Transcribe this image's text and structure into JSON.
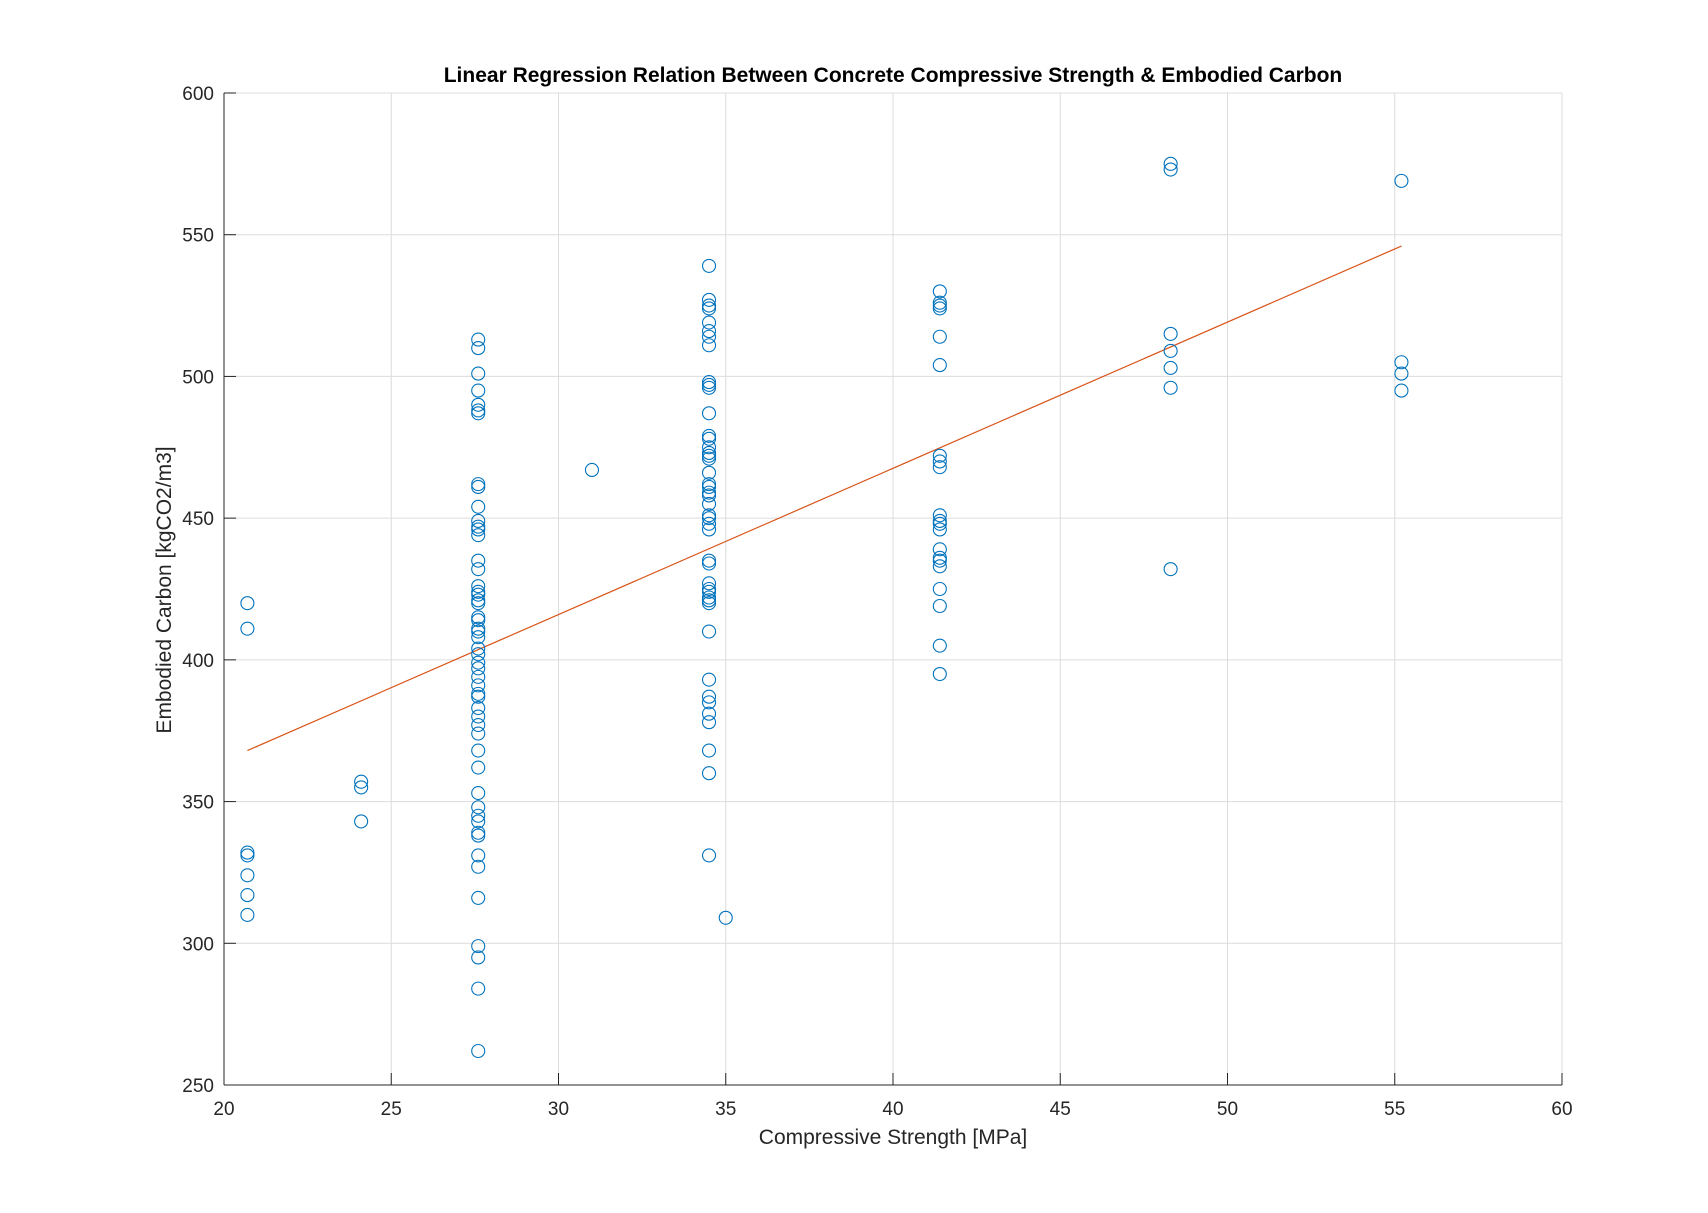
{
  "colors": {
    "points": "#0072BD",
    "fit_line": "#D95319",
    "grid": "#dcdcdc",
    "axis": "#262626"
  },
  "chart_data": {
    "type": "scatter",
    "title": "Linear Regression Relation Between Concrete Compressive Strength & Embodied Carbon",
    "xlabel": "Compressive Strength [MPa]",
    "ylabel": "Embodied Carbon [kgCO2/m3]",
    "xlim": [
      20,
      60
    ],
    "ylim": [
      250,
      600
    ],
    "xticks": [
      20,
      25,
      30,
      35,
      40,
      45,
      50,
      55,
      60
    ],
    "yticks": [
      250,
      300,
      350,
      400,
      450,
      500,
      550,
      600
    ],
    "grid": true,
    "series": [
      {
        "kind": "scatter",
        "marker": "circle-open",
        "points": [
          [
            20.7,
            420
          ],
          [
            20.7,
            411
          ],
          [
            20.7,
            332
          ],
          [
            20.7,
            331
          ],
          [
            20.7,
            324
          ],
          [
            20.7,
            317
          ],
          [
            20.7,
            310
          ],
          [
            24.1,
            357
          ],
          [
            24.1,
            355
          ],
          [
            24.1,
            343
          ],
          [
            27.6,
            513
          ],
          [
            27.6,
            510
          ],
          [
            27.6,
            501
          ],
          [
            27.6,
            495
          ],
          [
            27.6,
            490
          ],
          [
            27.6,
            488
          ],
          [
            27.6,
            487
          ],
          [
            27.6,
            462
          ],
          [
            27.6,
            461
          ],
          [
            27.6,
            454
          ],
          [
            27.6,
            449
          ],
          [
            27.6,
            447
          ],
          [
            27.6,
            446
          ],
          [
            27.6,
            444
          ],
          [
            27.6,
            435
          ],
          [
            27.6,
            432
          ],
          [
            27.6,
            426
          ],
          [
            27.6,
            424
          ],
          [
            27.6,
            423
          ],
          [
            27.6,
            421
          ],
          [
            27.6,
            420
          ],
          [
            27.6,
            415
          ],
          [
            27.6,
            414
          ],
          [
            27.6,
            411
          ],
          [
            27.6,
            410
          ],
          [
            27.6,
            408
          ],
          [
            27.6,
            404
          ],
          [
            27.6,
            402
          ],
          [
            27.6,
            399
          ],
          [
            27.6,
            397
          ],
          [
            27.6,
            394
          ],
          [
            27.6,
            391
          ],
          [
            27.6,
            388
          ],
          [
            27.6,
            387
          ],
          [
            27.6,
            383
          ],
          [
            27.6,
            380
          ],
          [
            27.6,
            377
          ],
          [
            27.6,
            374
          ],
          [
            27.6,
            368
          ],
          [
            27.6,
            362
          ],
          [
            27.6,
            353
          ],
          [
            27.6,
            348
          ],
          [
            27.6,
            345
          ],
          [
            27.6,
            343
          ],
          [
            27.6,
            339
          ],
          [
            27.6,
            338
          ],
          [
            27.6,
            331
          ],
          [
            27.6,
            327
          ],
          [
            27.6,
            316
          ],
          [
            27.6,
            299
          ],
          [
            27.6,
            295
          ],
          [
            27.6,
            284
          ],
          [
            27.6,
            262
          ],
          [
            31.0,
            467
          ],
          [
            34.5,
            539
          ],
          [
            34.5,
            527
          ],
          [
            34.5,
            525
          ],
          [
            34.5,
            524
          ],
          [
            34.5,
            519
          ],
          [
            34.5,
            516
          ],
          [
            34.5,
            514
          ],
          [
            34.5,
            511
          ],
          [
            34.5,
            498
          ],
          [
            34.5,
            497
          ],
          [
            34.5,
            496
          ],
          [
            34.5,
            487
          ],
          [
            34.5,
            479
          ],
          [
            34.5,
            478
          ],
          [
            34.5,
            475
          ],
          [
            34.5,
            473
          ],
          [
            34.5,
            472
          ],
          [
            34.5,
            471
          ],
          [
            34.5,
            466
          ],
          [
            34.5,
            462
          ],
          [
            34.5,
            461
          ],
          [
            34.5,
            459
          ],
          [
            34.5,
            458
          ],
          [
            34.5,
            455
          ],
          [
            34.5,
            451
          ],
          [
            34.5,
            450
          ],
          [
            34.5,
            448
          ],
          [
            34.5,
            446
          ],
          [
            34.5,
            435
          ],
          [
            34.5,
            434
          ],
          [
            34.5,
            427
          ],
          [
            34.5,
            425
          ],
          [
            34.5,
            424
          ],
          [
            34.5,
            422
          ],
          [
            34.5,
            421
          ],
          [
            34.5,
            420
          ],
          [
            34.5,
            410
          ],
          [
            34.5,
            393
          ],
          [
            34.5,
            387
          ],
          [
            34.5,
            385
          ],
          [
            34.5,
            381
          ],
          [
            34.5,
            378
          ],
          [
            34.5,
            368
          ],
          [
            34.5,
            360
          ],
          [
            34.5,
            331
          ],
          [
            35.0,
            309
          ],
          [
            41.4,
            530
          ],
          [
            41.4,
            526
          ],
          [
            41.4,
            525
          ],
          [
            41.4,
            524
          ],
          [
            41.4,
            514
          ],
          [
            41.4,
            504
          ],
          [
            41.4,
            472
          ],
          [
            41.4,
            470
          ],
          [
            41.4,
            468
          ],
          [
            41.4,
            451
          ],
          [
            41.4,
            449
          ],
          [
            41.4,
            448
          ],
          [
            41.4,
            446
          ],
          [
            41.4,
            439
          ],
          [
            41.4,
            436
          ],
          [
            41.4,
            435
          ],
          [
            41.4,
            433
          ],
          [
            41.4,
            425
          ],
          [
            41.4,
            419
          ],
          [
            41.4,
            405
          ],
          [
            41.4,
            395
          ],
          [
            48.3,
            575
          ],
          [
            48.3,
            573
          ],
          [
            48.3,
            515
          ],
          [
            48.3,
            509
          ],
          [
            48.3,
            503
          ],
          [
            48.3,
            496
          ],
          [
            48.3,
            432
          ],
          [
            55.2,
            569
          ],
          [
            55.2,
            505
          ],
          [
            55.2,
            501
          ],
          [
            55.2,
            495
          ]
        ]
      },
      {
        "kind": "line",
        "points": [
          [
            20.7,
            368
          ],
          [
            55.2,
            546
          ]
        ]
      }
    ]
  }
}
